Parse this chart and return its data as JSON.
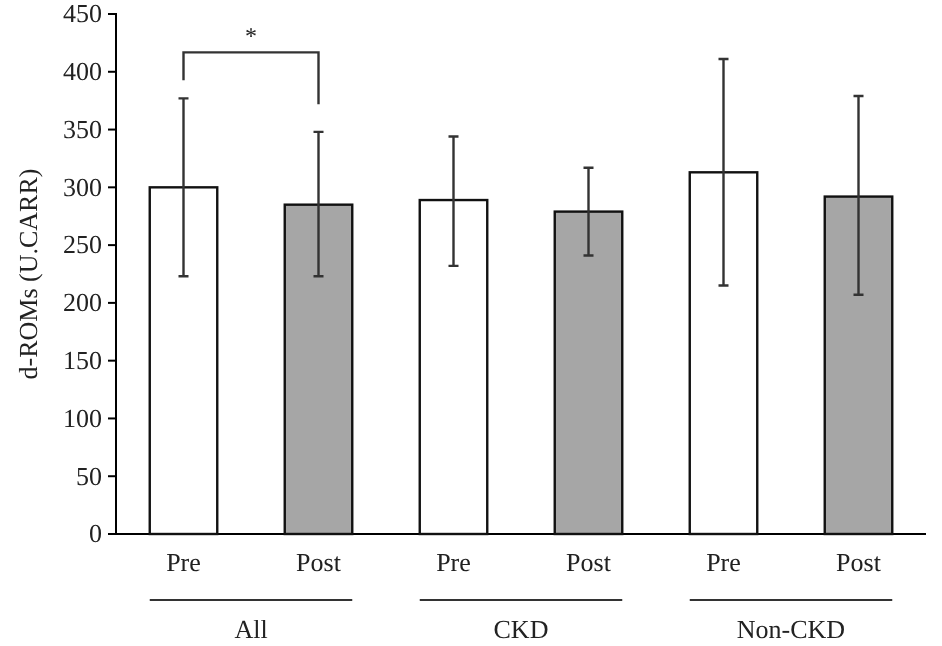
{
  "chart_data": {
    "type": "bar",
    "ylabel": "d-ROMs (U.CARR)",
    "categories": [
      "Pre",
      "Post",
      "Pre",
      "Post",
      "Pre",
      "Post"
    ],
    "values": [
      300,
      285,
      289,
      279,
      313,
      292
    ],
    "colors": [
      "#ffffff",
      "#a6a6a6",
      "#ffffff",
      "#a6a6a6",
      "#ffffff",
      "#a6a6a6"
    ],
    "errors": [
      [
        223,
        377
      ],
      [
        223,
        348
      ],
      [
        232,
        344
      ],
      [
        241,
        317
      ],
      [
        215,
        411
      ],
      [
        207,
        379
      ]
    ],
    "ylim": [
      0,
      450
    ],
    "yticks": [
      0,
      50,
      100,
      150,
      200,
      250,
      300,
      350,
      400,
      450
    ],
    "annotations": [
      "*",
      "All",
      "CKD",
      "Non-CKD"
    ]
  }
}
